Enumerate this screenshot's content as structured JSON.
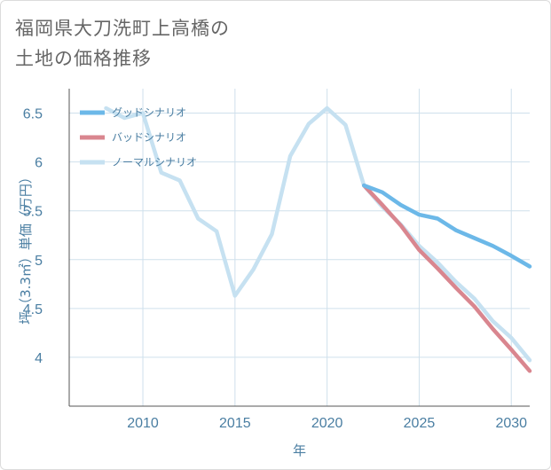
{
  "title_lines": [
    "福岡県大刀洗町上高橋の",
    "土地の価格推移"
  ],
  "colors": {
    "good": "#6cb8e8",
    "bad": "#d9868f",
    "normal": "#c6e1f1",
    "axis_text": "#4a7ea2",
    "grid": "#cfe0ec",
    "frame": "#555555"
  },
  "chart_data": {
    "type": "line",
    "xlabel": "年",
    "ylabel": "坪（3.3㎡）単価（万円）",
    "xlim": [
      2006,
      2031
    ],
    "ylim": [
      3.5,
      6.75
    ],
    "xticks": [
      2010,
      2015,
      2020,
      2025,
      2030
    ],
    "yticks": [
      4,
      4.5,
      5,
      5.5,
      6,
      6.5
    ],
    "grid": true,
    "legend_position": "top-left",
    "series": [
      {
        "name": "グッドシナリオ",
        "color": "#6cb8e8",
        "x": [
          2022,
          2023,
          2024,
          2025,
          2026,
          2027,
          2028,
          2029,
          2030,
          2031
        ],
        "y": [
          5.76,
          5.69,
          5.56,
          5.46,
          5.42,
          5.3,
          5.22,
          5.14,
          5.04,
          4.93
        ]
      },
      {
        "name": "バッドシナリオ",
        "color": "#d9868f",
        "x": [
          2022,
          2023,
          2024,
          2025,
          2026,
          2027,
          2028,
          2029,
          2030,
          2031
        ],
        "y": [
          5.76,
          5.56,
          5.35,
          5.1,
          4.91,
          4.71,
          4.52,
          4.29,
          4.08,
          3.86
        ]
      },
      {
        "name": "ノーマルシナリオ",
        "color": "#c6e1f1",
        "x": [
          2008,
          2009,
          2010,
          2011,
          2012,
          2013,
          2014,
          2015,
          2016,
          2017,
          2018,
          2019,
          2020,
          2021,
          2022,
          2023,
          2024,
          2025,
          2026,
          2027,
          2028,
          2029,
          2030,
          2031
        ],
        "y": [
          6.55,
          6.45,
          6.5,
          5.89,
          5.81,
          5.42,
          5.29,
          4.63,
          4.9,
          5.26,
          6.06,
          6.39,
          6.55,
          6.38,
          5.76,
          5.54,
          5.36,
          5.14,
          4.97,
          4.77,
          4.6,
          4.37,
          4.2,
          3.97
        ]
      }
    ]
  }
}
